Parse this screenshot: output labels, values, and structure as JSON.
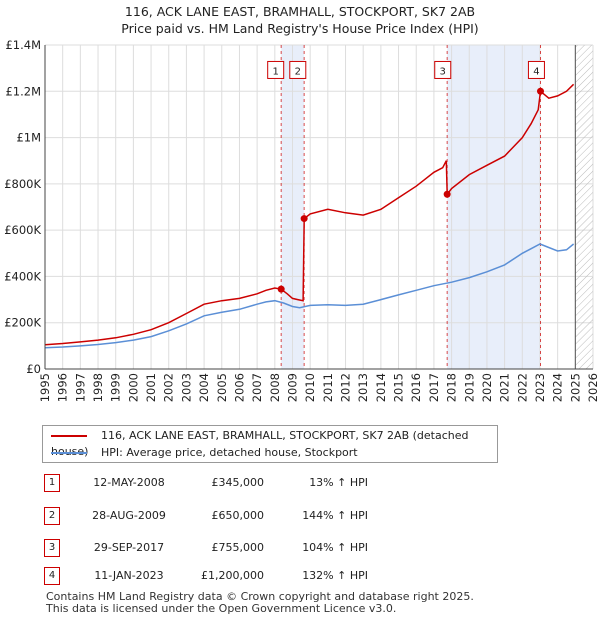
{
  "header": {
    "title": "116, ACK LANE EAST, BRAMHALL, STOCKPORT, SK7 2AB",
    "subtitle": "Price paid vs. HM Land Registry's House Price Index (HPI)"
  },
  "colors": {
    "price": "#cc0000",
    "hpi": "#5b8fd6",
    "shade": "#e8eefa",
    "grid": "#dddddd"
  },
  "chart_data": {
    "type": "line",
    "title": "Price paid vs. HM Land Registry's House Price Index (HPI)",
    "xlabel": "",
    "ylabel": "",
    "xlim": [
      1995,
      2026
    ],
    "ylim": [
      0,
      1400000
    ],
    "y_ticks": [
      0,
      200000,
      400000,
      600000,
      800000,
      1000000,
      1200000,
      1400000
    ],
    "y_tick_labels": [
      "£0",
      "£200K",
      "£400K",
      "£600K",
      "£800K",
      "£1M",
      "£1.2M",
      "£1.4M"
    ],
    "x_ticks": [
      1995,
      1996,
      1997,
      1998,
      1999,
      2000,
      2001,
      2002,
      2003,
      2004,
      2005,
      2006,
      2007,
      2008,
      2009,
      2010,
      2011,
      2012,
      2013,
      2014,
      2015,
      2016,
      2017,
      2018,
      2019,
      2020,
      2021,
      2022,
      2023,
      2024,
      2025,
      2026
    ],
    "x_tick_labels": [
      "1995",
      "1996",
      "1997",
      "1998",
      "1999",
      "2000",
      "2001",
      "2002",
      "2003",
      "2004",
      "2005",
      "2006",
      "2007",
      "2008",
      "2009",
      "2010",
      "2011",
      "2012",
      "2013",
      "2014",
      "2015",
      "2016",
      "2017",
      "2018",
      "2019",
      "2020",
      "2021",
      "2022",
      "2023",
      "2024",
      "2025",
      "2026"
    ],
    "future_hatch_from": 2025.0,
    "shaded_periods": [
      [
        2008.36,
        2009.66
      ],
      [
        2017.75,
        2023.03
      ]
    ],
    "series": [
      {
        "name": "116, ACK LANE EAST, BRAMHALL, STOCKPORT, SK7 2AB (detached house)",
        "color": "#cc0000",
        "x": [
          1995.0,
          1996.0,
          1997.0,
          1998.0,
          1999.0,
          2000.0,
          2001.0,
          2002.0,
          2003.0,
          2004.0,
          2005.0,
          2006.0,
          2007.0,
          2007.5,
          2008.0,
          2008.36,
          2008.7,
          2009.0,
          2009.3,
          2009.6,
          2009.66,
          2010.0,
          2011.0,
          2012.0,
          2013.0,
          2014.0,
          2015.0,
          2016.0,
          2016.5,
          2017.0,
          2017.5,
          2017.7,
          2017.75,
          2018.0,
          2019.0,
          2020.0,
          2021.0,
          2022.0,
          2022.5,
          2022.9,
          2023.03,
          2023.5,
          2024.0,
          2024.5,
          2024.9
        ],
        "values": [
          105000,
          110000,
          117000,
          125000,
          135000,
          150000,
          170000,
          200000,
          240000,
          280000,
          295000,
          305000,
          325000,
          340000,
          350000,
          345000,
          325000,
          305000,
          300000,
          295000,
          650000,
          670000,
          690000,
          675000,
          665000,
          690000,
          740000,
          790000,
          820000,
          850000,
          870000,
          900000,
          755000,
          780000,
          840000,
          880000,
          920000,
          1000000,
          1060000,
          1120000,
          1200000,
          1170000,
          1180000,
          1200000,
          1230000
        ]
      },
      {
        "name": "HPI: Average price, detached house, Stockport",
        "color": "#5b8fd6",
        "x": [
          1995.0,
          1996.0,
          1997.0,
          1998.0,
          1999.0,
          2000.0,
          2001.0,
          2002.0,
          2003.0,
          2004.0,
          2005.0,
          2006.0,
          2007.0,
          2007.5,
          2008.0,
          2008.5,
          2009.0,
          2009.4,
          2010.0,
          2011.0,
          2012.0,
          2013.0,
          2014.0,
          2015.0,
          2016.0,
          2017.0,
          2018.0,
          2019.0,
          2020.0,
          2021.0,
          2022.0,
          2022.5,
          2023.0,
          2023.5,
          2024.0,
          2024.5,
          2024.9
        ],
        "values": [
          92000,
          95000,
          100000,
          106000,
          114000,
          125000,
          140000,
          165000,
          195000,
          230000,
          245000,
          258000,
          280000,
          290000,
          295000,
          285000,
          270000,
          265000,
          275000,
          278000,
          275000,
          280000,
          300000,
          320000,
          340000,
          360000,
          375000,
          395000,
          420000,
          450000,
          500000,
          520000,
          540000,
          525000,
          510000,
          515000,
          540000
        ]
      }
    ],
    "markers": [
      {
        "label": "1",
        "x": 2008.36,
        "y": 345000,
        "box_x": 2008.05
      },
      {
        "label": "2",
        "x": 2009.66,
        "y": 650000,
        "box_x": 2009.3
      },
      {
        "label": "3",
        "x": 2017.75,
        "y": 755000,
        "box_x": 2017.5
      },
      {
        "label": "4",
        "x": 2023.03,
        "y": 1200000,
        "box_x": 2022.8
      }
    ],
    "marker_box_y": 1290000
  },
  "legend": {
    "price_label": "116, ACK LANE EAST, BRAMHALL, STOCKPORT, SK7 2AB (detached house)",
    "hpi_label": "HPI: Average price, detached house, Stockport"
  },
  "transactions": [
    {
      "num": "1",
      "date": "12-MAY-2008",
      "price": "£345,000",
      "hpi": "13% ↑ HPI"
    },
    {
      "num": "2",
      "date": "28-AUG-2009",
      "price": "£650,000",
      "hpi": "144% ↑ HPI"
    },
    {
      "num": "3",
      "date": "29-SEP-2017",
      "price": "£755,000",
      "hpi": "104% ↑ HPI"
    },
    {
      "num": "4",
      "date": "11-JAN-2023",
      "price": "£1,200,000",
      "hpi": "132% ↑ HPI"
    }
  ],
  "footer": {
    "line1": "Contains HM Land Registry data © Crown copyright and database right 2025.",
    "line2": "This data is licensed under the Open Government Licence v3.0."
  }
}
